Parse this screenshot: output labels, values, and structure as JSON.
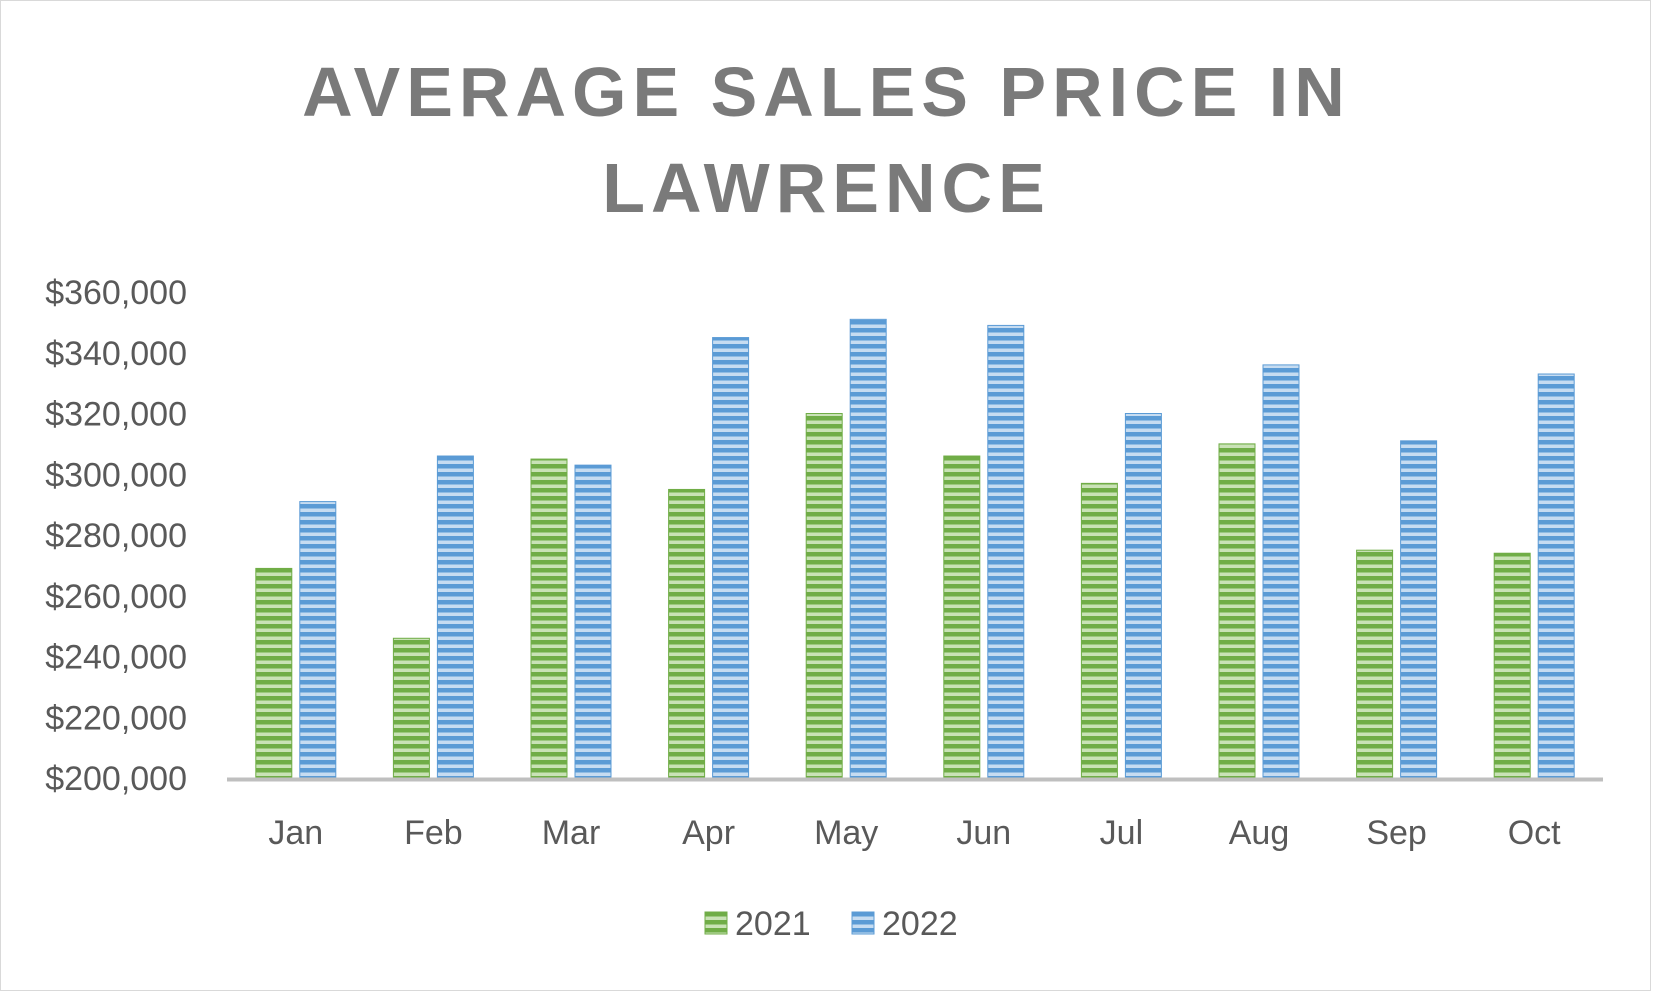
{
  "chart_data": {
    "type": "bar",
    "title_lines": [
      "AVERAGE SALES PRICE IN",
      "LAWRENCE"
    ],
    "categories": [
      "Jan",
      "Feb",
      "Mar",
      "Apr",
      "May",
      "Jun",
      "Jul",
      "Aug",
      "Sep",
      "Oct"
    ],
    "series": [
      {
        "name": "2021",
        "color": "#70ad47",
        "values": [
          269000,
          246000,
          305000,
          295000,
          320000,
          306000,
          297000,
          310000,
          275000,
          274000
        ]
      },
      {
        "name": "2022",
        "color": "#5b9bd5",
        "values": [
          291000,
          306000,
          303000,
          345000,
          351000,
          349000,
          320000,
          336000,
          311000,
          333000
        ]
      }
    ],
    "ylim": [
      200000,
      360000
    ],
    "yticks": [
      200000,
      220000,
      240000,
      260000,
      280000,
      300000,
      320000,
      340000,
      360000
    ],
    "ytick_labels": [
      "$200,000",
      "$220,000",
      "$240,000",
      "$260,000",
      "$280,000",
      "$300,000",
      "$320,000",
      "$340,000",
      "$360,000"
    ],
    "grid": false,
    "legend_position": "bottom"
  }
}
